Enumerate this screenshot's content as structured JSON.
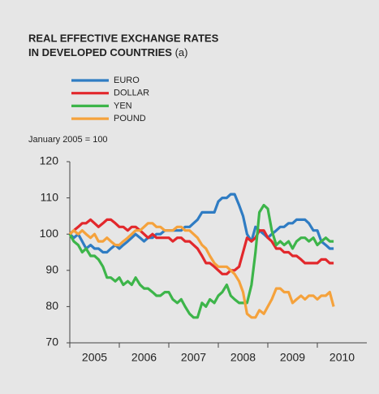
{
  "chart_data": {
    "type": "line",
    "title": [
      "REAL EFFECTIVE EXCHANGE RATES",
      "IN DEVELOPED COUNTRIES"
    ],
    "title_note": "(a)",
    "subtitle": "January 2005 = 100",
    "x": [
      2005,
      2005.08,
      2005.17,
      2005.25,
      2005.33,
      2005.42,
      2005.5,
      2005.58,
      2005.67,
      2005.75,
      2005.83,
      2005.92,
      2006,
      2006.08,
      2006.17,
      2006.25,
      2006.33,
      2006.42,
      2006.5,
      2006.58,
      2006.67,
      2006.75,
      2006.83,
      2006.92,
      2007,
      2007.08,
      2007.17,
      2007.25,
      2007.33,
      2007.42,
      2007.5,
      2007.58,
      2007.67,
      2007.75,
      2007.83,
      2007.92,
      2008,
      2008.08,
      2008.17,
      2008.25,
      2008.33,
      2008.42,
      2008.5,
      2008.58,
      2008.67,
      2008.75,
      2008.83,
      2008.92,
      2009,
      2009.08,
      2009.17,
      2009.25,
      2009.33,
      2009.42,
      2009.5,
      2009.58,
      2009.67,
      2009.75,
      2009.83,
      2009.92,
      2010,
      2010.08,
      2010.17,
      2010.25,
      2010.33
    ],
    "series": [
      {
        "name": "EURO",
        "color": "#2f7cc3",
        "values": [
          100,
          99,
          100,
          98,
          96,
          97,
          96,
          96,
          95,
          95,
          96,
          97,
          96,
          97,
          98,
          99,
          100,
          99,
          98,
          99,
          99,
          100,
          100,
          101,
          101,
          101,
          101,
          101,
          102,
          102,
          103,
          104,
          106,
          106,
          106,
          106,
          109,
          110,
          110,
          111,
          111,
          108,
          105,
          100,
          98,
          102,
          101,
          100,
          99,
          100,
          101,
          102,
          102,
          103,
          103,
          104,
          104,
          104,
          103,
          101,
          101,
          98,
          97,
          96,
          96
        ]
      },
      {
        "name": "DOLLAR",
        "color": "#e2282c",
        "values": [
          100,
          101,
          102,
          103,
          103,
          104,
          103,
          102,
          103,
          104,
          104,
          103,
          102,
          102,
          101,
          102,
          102,
          101,
          100,
          99,
          100,
          99,
          99,
          99,
          99,
          98,
          99,
          99,
          98,
          98,
          97,
          96,
          94,
          92,
          92,
          91,
          90,
          89,
          89,
          90,
          90,
          91,
          95,
          99,
          98,
          99,
          101,
          101,
          99,
          98,
          96,
          96,
          95,
          95,
          94,
          94,
          93,
          92,
          92,
          92,
          92,
          93,
          93,
          92,
          92
        ]
      },
      {
        "name": "YEN",
        "color": "#3db54a",
        "values": [
          100,
          98,
          97,
          95,
          96,
          94,
          94,
          93,
          91,
          88,
          88,
          87,
          88,
          86,
          87,
          86,
          88,
          86,
          85,
          85,
          84,
          83,
          83,
          84,
          84,
          82,
          81,
          82,
          80,
          78,
          77,
          77,
          81,
          80,
          82,
          81,
          83,
          84,
          86,
          83,
          82,
          81,
          81,
          81,
          86,
          95,
          106,
          108,
          107,
          101,
          97,
          98,
          97,
          98,
          96,
          98,
          99,
          99,
          98,
          99,
          97,
          98,
          99,
          98,
          98
        ]
      },
      {
        "name": "POUND",
        "color": "#f5a23c",
        "values": [
          100,
          101,
          100,
          101,
          100,
          99,
          100,
          98,
          98,
          99,
          98,
          97,
          97,
          98,
          99,
          100,
          101,
          101,
          102,
          103,
          103,
          102,
          102,
          101,
          101,
          101,
          102,
          102,
          101,
          101,
          100,
          99,
          97,
          96,
          94,
          92,
          91,
          91,
          91,
          90,
          89,
          87,
          84,
          78,
          77,
          77,
          79,
          78,
          80,
          82,
          85,
          85,
          84,
          84,
          81,
          82,
          83,
          82,
          83,
          83,
          82,
          83,
          83,
          84,
          80
        ]
      }
    ],
    "xlim": [
      2005,
      2011
    ],
    "xticks": [
      2005,
      2006,
      2007,
      2008,
      2009,
      2010
    ],
    "ylim": [
      70,
      120
    ],
    "yticks": [
      70,
      80,
      90,
      100,
      110,
      120
    ]
  }
}
